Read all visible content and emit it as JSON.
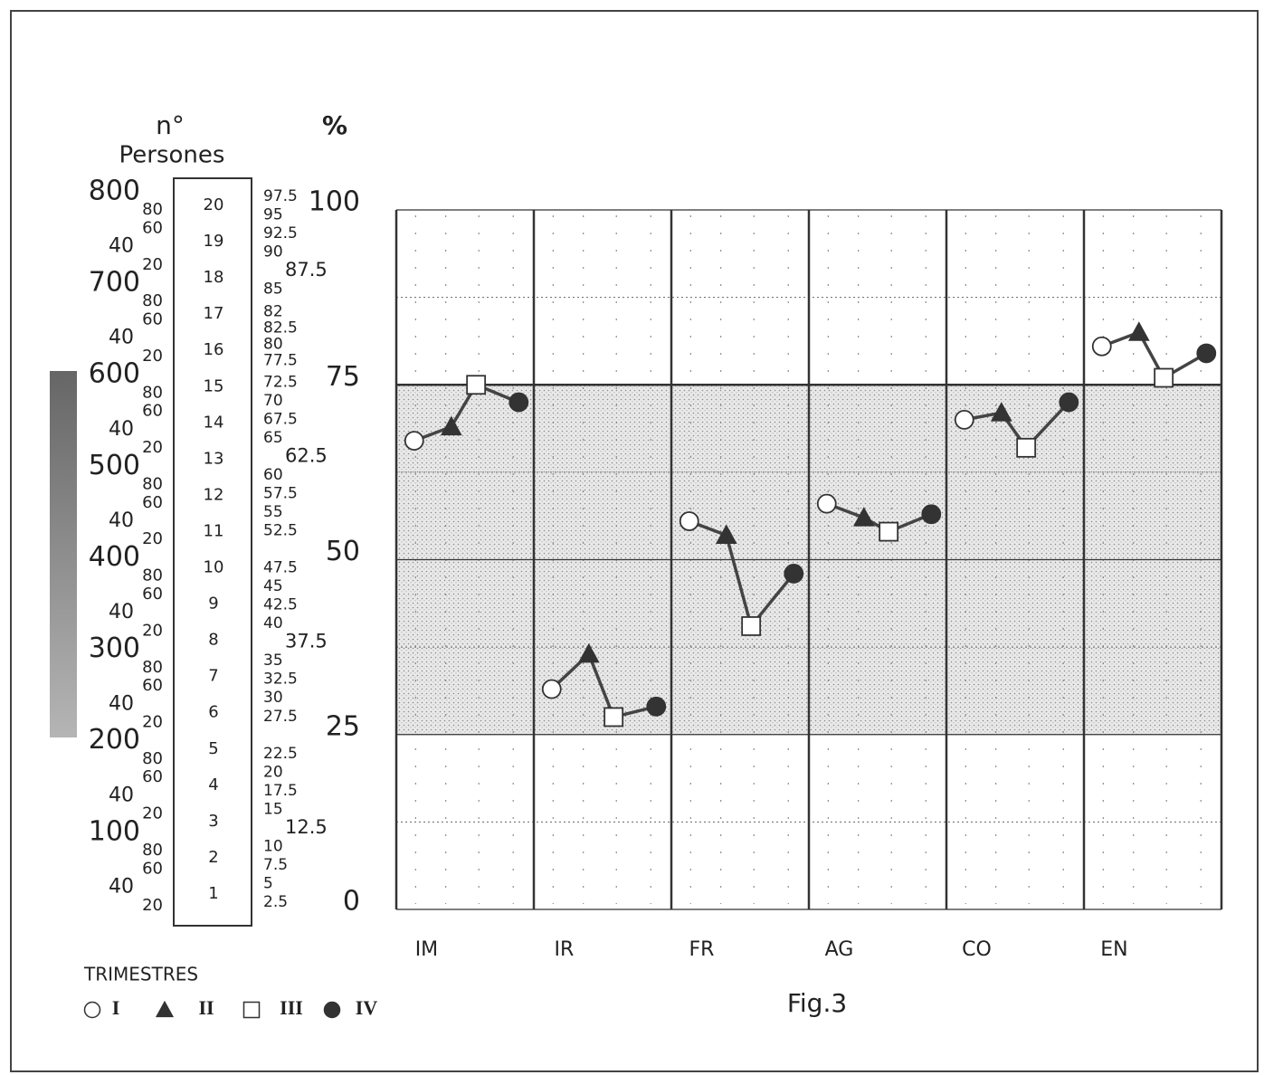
{
  "chart_data": {
    "type": "line",
    "title": "Fig.3",
    "y_label": "%",
    "categories": [
      "IM",
      "IR",
      "FR",
      "AG",
      "CO",
      "EN"
    ],
    "series": [
      {
        "name": "I",
        "marker": "circle-open",
        "color": "#333333",
        "values": [
          67,
          31.5,
          55.5,
          58,
          70,
          80.5
        ]
      },
      {
        "name": "II",
        "marker": "triangle",
        "color": "#333333",
        "values": [
          69,
          36.5,
          53.5,
          56,
          71,
          82.5
        ]
      },
      {
        "name": "III",
        "marker": "square-open",
        "color": "#333333",
        "values": [
          75,
          27.5,
          40.5,
          54,
          66,
          76
        ]
      },
      {
        "name": "IV",
        "marker": "circle",
        "color": "#333333",
        "values": [
          72.5,
          29,
          48,
          56.5,
          72.5,
          79.5
        ]
      }
    ],
    "ylim": [
      0,
      100
    ],
    "yticks": [
      0,
      25,
      50,
      75,
      100
    ],
    "minor_yticks": [
      12.5,
      37.5,
      62.5,
      87.5
    ],
    "shaded_band": [
      25,
      75
    ],
    "legend_title": "TRIMESTRES",
    "scale": {
      "count_title": "n°",
      "count_label": "Persones",
      "persons_ticks": [
        800,
        {
          "value": 780,
          "label": "80"
        },
        {
          "value": 760,
          "label": "60"
        },
        {
          "value": 740,
          "label": "40"
        },
        {
          "value": 720,
          "label": "20"
        },
        700,
        {
          "value": 680,
          "label": "80"
        },
        {
          "value": 660,
          "label": "60"
        },
        {
          "value": 640,
          "label": "40"
        },
        {
          "value": 620,
          "label": "20"
        },
        600,
        {
          "value": 580,
          "label": "80"
        },
        {
          "value": 560,
          "label": "60"
        },
        {
          "value": 540,
          "label": "40"
        },
        {
          "value": 520,
          "label": "20"
        },
        500,
        {
          "value": 480,
          "label": "80"
        },
        {
          "value": 460,
          "label": "60"
        },
        {
          "value": 440,
          "label": "40"
        },
        {
          "value": 420,
          "label": "20"
        },
        400,
        {
          "value": 380,
          "label": "80"
        },
        {
          "value": 360,
          "label": "60"
        },
        {
          "value": 340,
          "label": "40"
        },
        {
          "value": 320,
          "label": "20"
        },
        300,
        {
          "value": 280,
          "label": "80"
        },
        {
          "value": 260,
          "label": "60"
        },
        {
          "value": 240,
          "label": "40"
        },
        {
          "value": 220,
          "label": "20"
        },
        200,
        {
          "value": 180,
          "label": "80"
        },
        {
          "value": 160,
          "label": "60"
        },
        {
          "value": 140,
          "label": "40"
        },
        {
          "value": 120,
          "label": "20"
        },
        100,
        80,
        60,
        40,
        20
      ],
      "count_ticks": [
        20,
        19,
        18,
        17,
        16,
        15,
        14,
        13,
        12,
        11,
        10,
        9,
        8,
        7,
        6,
        5,
        4,
        3,
        2,
        1
      ],
      "percent_ticks": [
        97.5,
        95,
        92.5,
        90,
        87.5,
        85,
        82,
        82.5,
        80,
        77.5,
        72.5,
        70,
        67.5,
        65,
        62.5,
        60,
        57.5,
        55,
        52.5,
        47.5,
        45,
        42.5,
        40,
        37.5,
        35,
        32.5,
        30,
        27.5,
        22.5,
        20,
        17.5,
        15,
        12.5,
        10,
        7.5,
        5,
        2.5
      ]
    }
  }
}
